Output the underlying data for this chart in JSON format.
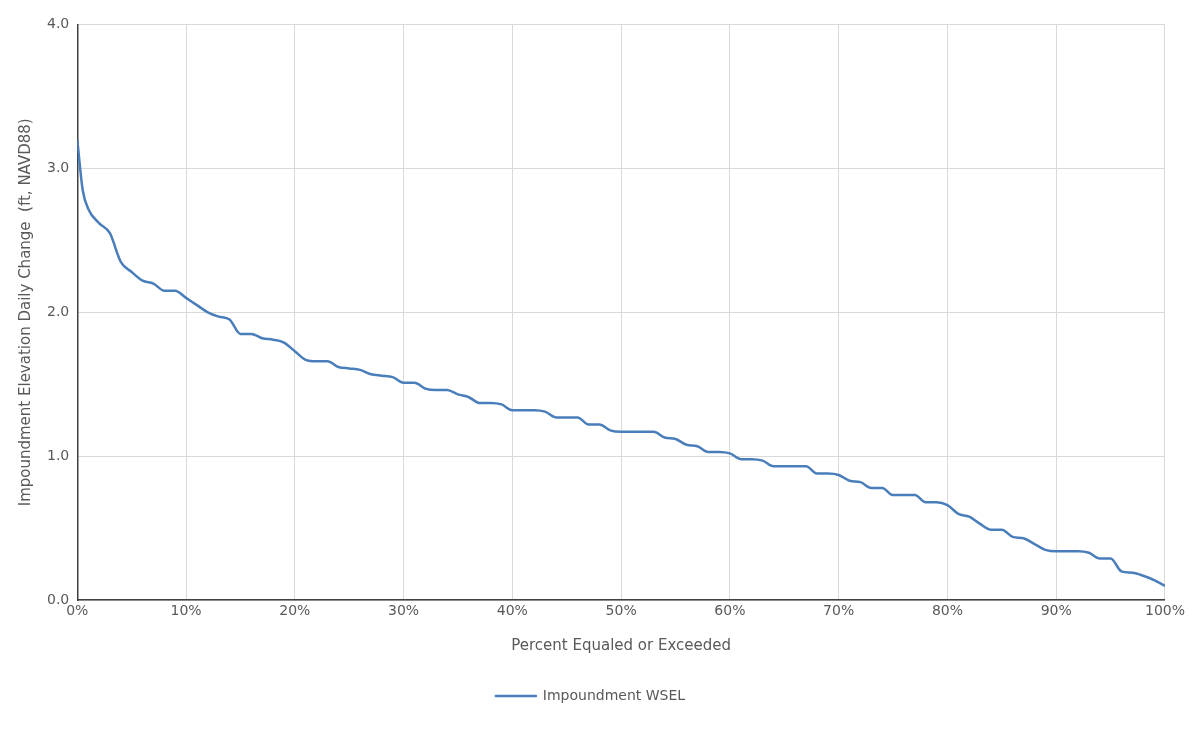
{
  "chart_data": {
    "type": "line",
    "xlabel": "Percent Equaled or Exceeded",
    "ylabel": "Impoundment Elevation Daily Change  (ft, NAVD88)",
    "xlim": [
      0,
      100
    ],
    "xticks": [
      {
        "value": 0,
        "label": "0%"
      },
      {
        "value": 10,
        "label": "10%"
      },
      {
        "value": 20,
        "label": "20%"
      },
      {
        "value": 30,
        "label": "30%"
      },
      {
        "value": 40,
        "label": "40%"
      },
      {
        "value": 50,
        "label": "50%"
      },
      {
        "value": 60,
        "label": "60%"
      },
      {
        "value": 70,
        "label": "70%"
      },
      {
        "value": 80,
        "label": "80%"
      },
      {
        "value": 90,
        "label": "90%"
      },
      {
        "value": 100,
        "label": "100%"
      }
    ],
    "ylim": [
      0,
      4
    ],
    "yticks": [
      {
        "value": 0,
        "label": "0.0"
      },
      {
        "value": 1,
        "label": "1.0"
      },
      {
        "value": 2,
        "label": "2.0"
      },
      {
        "value": 3,
        "label": "3.0"
      },
      {
        "value": 4,
        "label": "4.0"
      }
    ],
    "grid": true,
    "legend": "bottom",
    "marker": "none",
    "line_style": "solid",
    "x": [
      0,
      0.5,
      1,
      2,
      3,
      4,
      5,
      6,
      7,
      8,
      9,
      10,
      11,
      12,
      13,
      14,
      15,
      16,
      17,
      18,
      19,
      20,
      21,
      22,
      23,
      24,
      25,
      26,
      27,
      28,
      29,
      30,
      31,
      32,
      33,
      34,
      35,
      36,
      37,
      38,
      39,
      40,
      41,
      42,
      43,
      44,
      45,
      46,
      47,
      48,
      49,
      50,
      51,
      52,
      53,
      54,
      55,
      56,
      57,
      58,
      59,
      60,
      61,
      62,
      63,
      64,
      65,
      66,
      67,
      68,
      69,
      70,
      71,
      72,
      73,
      74,
      75,
      76,
      77,
      78,
      79,
      80,
      81,
      82,
      83,
      84,
      85,
      86,
      87,
      88,
      89,
      90,
      91,
      92,
      93,
      94,
      95,
      96,
      97,
      98,
      99,
      100
    ],
    "series": [
      {
        "name": "Impoundment WSEL",
        "color": "#4a7ebb",
        "values": [
          3.2,
          2.85,
          2.72,
          2.62,
          2.55,
          2.35,
          2.28,
          2.22,
          2.2,
          2.15,
          2.15,
          2.1,
          2.05,
          2.0,
          1.97,
          1.95,
          1.85,
          1.85,
          1.82,
          1.81,
          1.79,
          1.73,
          1.67,
          1.66,
          1.66,
          1.62,
          1.61,
          1.6,
          1.57,
          1.56,
          1.55,
          1.51,
          1.51,
          1.47,
          1.46,
          1.46,
          1.43,
          1.41,
          1.37,
          1.37,
          1.36,
          1.32,
          1.32,
          1.32,
          1.31,
          1.27,
          1.27,
          1.27,
          1.22,
          1.22,
          1.18,
          1.17,
          1.17,
          1.17,
          1.17,
          1.13,
          1.12,
          1.08,
          1.07,
          1.03,
          1.03,
          1.02,
          0.98,
          0.98,
          0.97,
          0.93,
          0.93,
          0.93,
          0.93,
          0.88,
          0.88,
          0.87,
          0.83,
          0.82,
          0.78,
          0.78,
          0.73,
          0.73,
          0.73,
          0.68,
          0.68,
          0.66,
          0.6,
          0.58,
          0.53,
          0.49,
          0.49,
          0.44,
          0.43,
          0.39,
          0.35,
          0.34,
          0.34,
          0.34,
          0.33,
          0.29,
          0.29,
          0.2,
          0.19,
          0.17,
          0.14,
          0.1
        ]
      }
    ]
  }
}
